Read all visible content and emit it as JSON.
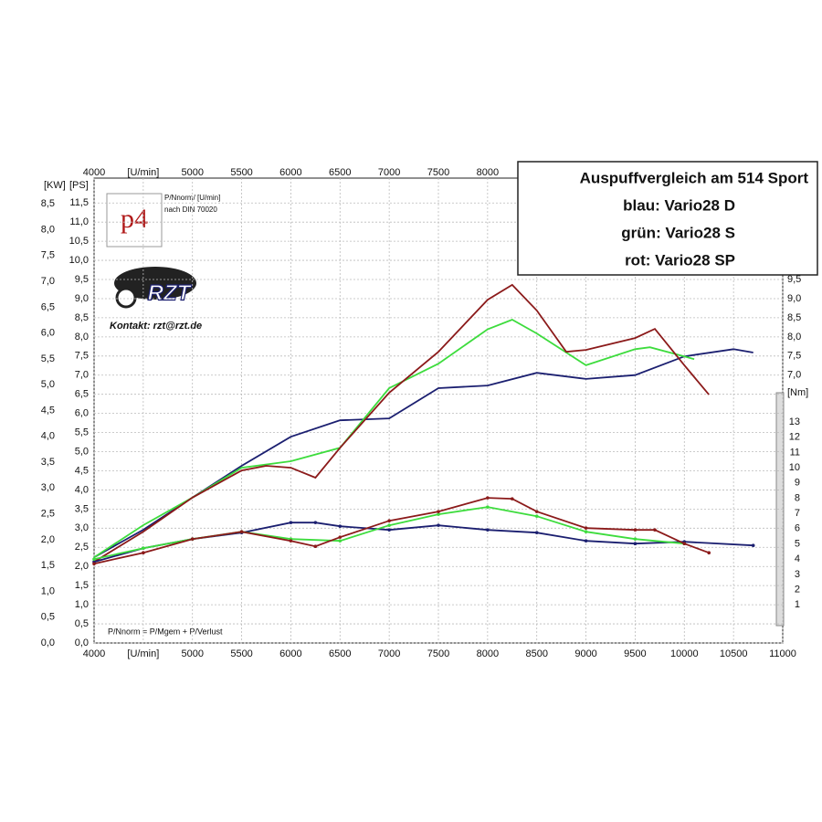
{
  "chart_data": {
    "type": "line",
    "title": "Auspuffvergleich am 514 Sport",
    "xlabel": "[U/min]",
    "ylabel": "[PS]",
    "kwlabel": "[KW]",
    "y2label": "[Nm]",
    "grid": true,
    "xlim": [
      4000,
      11000
    ],
    "xticks": [
      4000,
      {
        "value": 4500,
        "label": "[U/min]"
      },
      5000,
      5500,
      6000,
      6500,
      7000,
      7500,
      8000,
      8500,
      9000,
      9500,
      10000,
      10500,
      11000
    ],
    "ylim": [
      0,
      12.15
    ],
    "yticks": [
      {
        "value": 0,
        "label": "0,0"
      },
      {
        "value": 0.5,
        "label": "0,5"
      },
      {
        "value": 1,
        "label": "1,0"
      },
      {
        "value": 1.5,
        "label": "1,5"
      },
      {
        "value": 2,
        "label": "2,0"
      },
      {
        "value": 2.5,
        "label": "2,5"
      },
      {
        "value": 3,
        "label": "3,0"
      },
      {
        "value": 3.5,
        "label": "3,5"
      },
      {
        "value": 4,
        "label": "4,0"
      },
      {
        "value": 4.5,
        "label": "4,5"
      },
      {
        "value": 5,
        "label": "5,0"
      },
      {
        "value": 5.5,
        "label": "5,5"
      },
      {
        "value": 6,
        "label": "6,0"
      },
      {
        "value": 6.5,
        "label": "6,5"
      },
      {
        "value": 7,
        "label": "7,0"
      },
      {
        "value": 7.5,
        "label": "7,5"
      },
      {
        "value": 8,
        "label": "8,0"
      },
      {
        "value": 8.5,
        "label": "8,5"
      },
      {
        "value": 9,
        "label": "9,0"
      },
      {
        "value": 9.5,
        "label": "9,5"
      },
      {
        "value": 10,
        "label": "10,0"
      },
      {
        "value": 10.5,
        "label": "10,5"
      },
      {
        "value": 11,
        "label": "11,0"
      },
      {
        "value": 11.5,
        "label": "11,5"
      }
    ],
    "right_yticks": [
      {
        "value": 7,
        "label": "7,0"
      },
      {
        "value": 7.5,
        "label": "7,5"
      },
      {
        "value": 8,
        "label": "8,0"
      },
      {
        "value": 8.5,
        "label": "8,5"
      },
      {
        "value": 9,
        "label": "9,0"
      },
      {
        "value": 9.5,
        "label": "9,5"
      }
    ],
    "kwlim": [
      0,
      9
    ],
    "kwticks": [
      {
        "value": 0,
        "label": "0,0"
      },
      {
        "value": 0.5,
        "label": "0,5"
      },
      {
        "value": 1,
        "label": "1,0"
      },
      {
        "value": 1.5,
        "label": "1,5"
      },
      {
        "value": 2,
        "label": "2,0"
      },
      {
        "value": 2.5,
        "label": "2,5"
      },
      {
        "value": 3,
        "label": "3,0"
      },
      {
        "value": 3.5,
        "label": "3,5"
      },
      {
        "value": 4,
        "label": "4,0"
      },
      {
        "value": 4.5,
        "label": "4,5"
      },
      {
        "value": 5,
        "label": "5,0"
      },
      {
        "value": 5.5,
        "label": "5,5"
      },
      {
        "value": 6,
        "label": "6,0"
      },
      {
        "value": 6.5,
        "label": "6,5"
      },
      {
        "value": 7,
        "label": "7,0"
      },
      {
        "value": 7.5,
        "label": "7,5"
      },
      {
        "value": 8,
        "label": "8,0"
      },
      {
        "value": 8.5,
        "label": "8,5"
      }
    ],
    "y2lim": [
      -1.5,
      29
    ],
    "y2ticks": [
      1,
      2,
      3,
      4,
      5,
      6,
      7,
      8,
      9,
      10,
      11,
      12,
      13
    ],
    "logo": "p4",
    "logo_note": [
      "P/Nnorm/ [U/min]",
      "nach DIN 70020"
    ],
    "brand": "RZT",
    "contact": "Kontakt: rzt@rzt.de",
    "formula": "P/Nnorm = P/Mgem + P/Verlust",
    "series": [
      {
        "name": "blau: Vario28 D",
        "color": "#1b1f70",
        "x": [
          4000,
          4500,
          5000,
          5500,
          6000,
          6500,
          7000,
          7500,
          8000,
          8500,
          9000,
          9500,
          10000,
          10500,
          10700
        ],
        "values": [
          2.24,
          2.96,
          3.8,
          4.63,
          5.39,
          5.82,
          5.87,
          6.66,
          6.73,
          7.06,
          6.9,
          7.0,
          7.49,
          7.68,
          7.59
        ]
      },
      {
        "name": "grün: Vario28 S",
        "color": "#3ddc3d",
        "x": [
          4000,
          4500,
          5000,
          5500,
          6000,
          6500,
          7000,
          7500,
          8000,
          8250,
          8500,
          9000,
          9500,
          9650,
          10000,
          10100
        ],
        "values": [
          2.24,
          3.08,
          3.8,
          4.58,
          4.75,
          5.1,
          6.66,
          7.3,
          8.2,
          8.45,
          8.09,
          7.26,
          7.68,
          7.73,
          7.49,
          7.42
        ]
      },
      {
        "name": "rot: Vario28 SP",
        "color": "#8b1a1a",
        "x": [
          4000,
          4500,
          5000,
          5500,
          5750,
          6000,
          6250,
          6500,
          7000,
          7500,
          8000,
          8250,
          8500,
          8800,
          9000,
          9500,
          9700,
          10000,
          10250
        ],
        "values": [
          2.12,
          2.91,
          3.8,
          4.51,
          4.63,
          4.58,
          4.32,
          5.1,
          6.54,
          7.61,
          8.97,
          9.36,
          8.69,
          7.61,
          7.66,
          7.97,
          8.21,
          7.26,
          6.49
        ]
      },
      {
        "axis": "y2",
        "color": "#1b1f70",
        "markers": true,
        "x": [
          4000,
          4500,
          5000,
          5500,
          6000,
          6250,
          6500,
          7000,
          7500,
          8000,
          8500,
          9000,
          9500,
          10000,
          10700
        ],
        "values": [
          3.82,
          4.72,
          5.32,
          5.74,
          6.4,
          6.4,
          6.16,
          5.92,
          6.22,
          5.92,
          5.74,
          5.2,
          5.02,
          5.14,
          4.9
        ]
      },
      {
        "axis": "y2",
        "color": "#3ddc3d",
        "markers": true,
        "x": [
          4000,
          4500,
          5000,
          5500,
          6000,
          6500,
          7000,
          7500,
          8000,
          8500,
          9000,
          9500,
          10000
        ],
        "values": [
          4.0,
          4.72,
          5.32,
          5.8,
          5.32,
          5.2,
          6.22,
          6.94,
          7.42,
          6.82,
          5.8,
          5.32,
          5.02
        ]
      },
      {
        "axis": "y2",
        "color": "#8b1a1a",
        "markers": true,
        "x": [
          4000,
          4500,
          5000,
          5500,
          6000,
          6250,
          6500,
          7000,
          7500,
          8000,
          8250,
          8500,
          9000,
          9500,
          9700,
          10000,
          10250
        ],
        "values": [
          3.7,
          4.42,
          5.32,
          5.8,
          5.2,
          4.84,
          5.44,
          6.52,
          7.12,
          8.02,
          7.96,
          7.12,
          6.04,
          5.92,
          5.92,
          5.02,
          4.42
        ]
      }
    ]
  }
}
